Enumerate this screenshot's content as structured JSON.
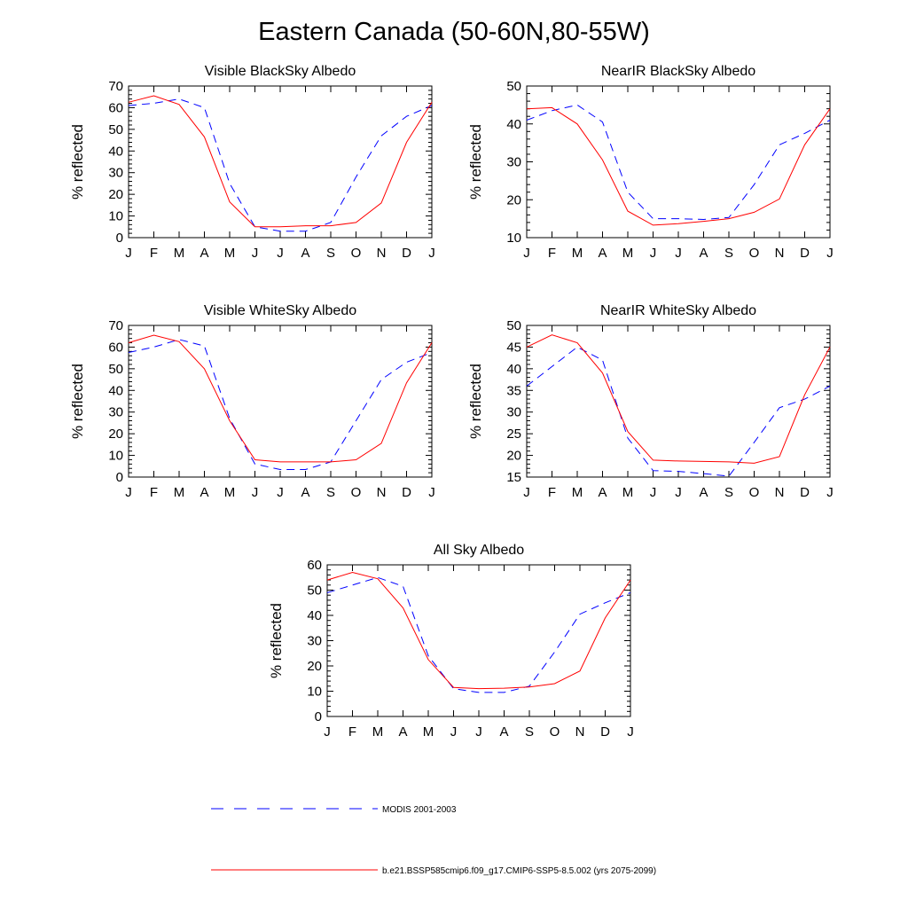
{
  "title": "Eastern Canada (50-60N,80-55W)",
  "months": [
    "J",
    "F",
    "M",
    "A",
    "M",
    "J",
    "J",
    "A",
    "S",
    "O",
    "N",
    "D",
    "J"
  ],
  "colors": {
    "modis": "#0000ff",
    "model": "#ff0000"
  },
  "legend": {
    "modis": "MODIS 2001-2003",
    "model": "b.e21.BSSP585cmip6.f09_g17.CMIP6-SSP5-8.5.002 (yrs 2075-2099)"
  },
  "chart_data": [
    {
      "type": "line",
      "title": "Visible BlackSky Albedo",
      "ylabel": "% reflected",
      "ylim": [
        0,
        70
      ],
      "yticks": [
        0,
        10,
        20,
        30,
        40,
        50,
        60,
        70
      ],
      "categories": [
        "J",
        "F",
        "M",
        "A",
        "M",
        "J",
        "J",
        "A",
        "S",
        "O",
        "N",
        "D",
        "J"
      ],
      "series": [
        {
          "name": "MODIS 2001-2003",
          "style": "dashed",
          "values": [
            61,
            62,
            64,
            60,
            25,
            5,
            3,
            3,
            7,
            28,
            47,
            56,
            61
          ]
        },
        {
          "name": "b.e21.BSSP585cmip6.f09_g17.CMIP6-SSP5-8.5.002 (yrs 2075-2099)",
          "style": "solid",
          "values": [
            62.5,
            65.5,
            61.5,
            46.5,
            16.5,
            5,
            5,
            5.5,
            5.5,
            7,
            16,
            44,
            62.5
          ]
        }
      ]
    },
    {
      "type": "line",
      "title": "NearIR BlackSky Albedo",
      "ylabel": "% reflected",
      "ylim": [
        10,
        50
      ],
      "yticks": [
        10,
        20,
        30,
        40,
        50
      ],
      "categories": [
        "J",
        "F",
        "M",
        "A",
        "M",
        "J",
        "J",
        "A",
        "S",
        "O",
        "N",
        "D",
        "J"
      ],
      "series": [
        {
          "name": "MODIS 2001-2003",
          "style": "dashed",
          "values": [
            41,
            43.5,
            45,
            40.5,
            22,
            15,
            15,
            14.8,
            15.3,
            24,
            34.5,
            37.5,
            41
          ]
        },
        {
          "name": "b.e21.BSSP585cmip6.f09_g17.CMIP6-SSP5-8.5.002 (yrs 2075-2099)",
          "style": "solid",
          "values": [
            44,
            44.3,
            40,
            30.5,
            17,
            13.3,
            13.7,
            14.3,
            15,
            16.7,
            20.2,
            34.5,
            44
          ]
        }
      ]
    },
    {
      "type": "line",
      "title": "Visible WhiteSky Albedo",
      "ylabel": "% reflected",
      "ylim": [
        0,
        70
      ],
      "yticks": [
        0,
        10,
        20,
        30,
        40,
        50,
        60,
        70
      ],
      "categories": [
        "J",
        "F",
        "M",
        "A",
        "M",
        "J",
        "J",
        "A",
        "S",
        "O",
        "N",
        "D",
        "J"
      ],
      "series": [
        {
          "name": "MODIS 2001-2003",
          "style": "dashed",
          "values": [
            57.5,
            60,
            63.5,
            60.5,
            27,
            6,
            3.5,
            3.5,
            7,
            26,
            45,
            53,
            57.5
          ]
        },
        {
          "name": "b.e21.BSSP585cmip6.f09_g17.CMIP6-SSP5-8.5.002 (yrs 2075-2099)",
          "style": "solid",
          "values": [
            62,
            65.5,
            62.5,
            50,
            26,
            8,
            7,
            7,
            7,
            8,
            15.5,
            43.5,
            62
          ]
        }
      ]
    },
    {
      "type": "line",
      "title": "NearIR WhiteSky Albedo",
      "ylabel": "% reflected",
      "ylim": [
        15,
        50
      ],
      "yticks": [
        15,
        20,
        25,
        30,
        35,
        40,
        45,
        50
      ],
      "categories": [
        "J",
        "F",
        "M",
        "A",
        "M",
        "J",
        "J",
        "A",
        "S",
        "O",
        "N",
        "D",
        "J"
      ],
      "series": [
        {
          "name": "MODIS 2001-2003",
          "style": "dashed",
          "values": [
            36,
            40.5,
            45,
            42,
            24,
            16.5,
            16.3,
            15.8,
            15.2,
            23,
            31,
            33,
            36
          ]
        },
        {
          "name": "b.e21.BSSP585cmip6.f09_g17.CMIP6-SSP5-8.5.002 (yrs 2075-2099)",
          "style": "solid",
          "values": [
            45,
            47.8,
            46,
            39,
            25.5,
            18.9,
            18.7,
            18.6,
            18.5,
            18.2,
            19.7,
            34,
            45
          ]
        }
      ]
    },
    {
      "type": "line",
      "title": "All Sky Albedo",
      "ylabel": "% reflected",
      "ylim": [
        0,
        60
      ],
      "yticks": [
        0,
        10,
        20,
        30,
        40,
        50,
        60
      ],
      "categories": [
        "J",
        "F",
        "M",
        "A",
        "M",
        "J",
        "J",
        "A",
        "S",
        "O",
        "N",
        "D",
        "J"
      ],
      "series": [
        {
          "name": "MODIS 2001-2003",
          "style": "dashed",
          "values": [
            49,
            52,
            55,
            51.5,
            24,
            11,
            9.5,
            9.5,
            12,
            25.5,
            40.5,
            45,
            49
          ]
        },
        {
          "name": "b.e21.BSSP585cmip6.f09_g17.CMIP6-SSP5-8.5.002 (yrs 2075-2099)",
          "style": "solid",
          "values": [
            54,
            57,
            54.5,
            43,
            22.5,
            11.5,
            11,
            11.2,
            11.7,
            13,
            18,
            39,
            54
          ]
        }
      ]
    }
  ]
}
